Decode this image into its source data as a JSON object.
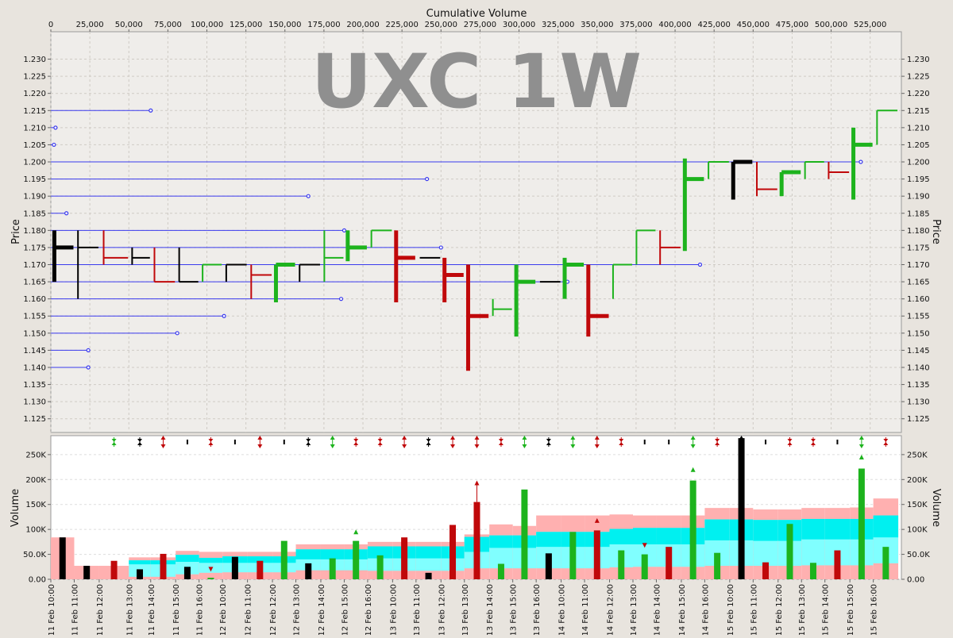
{
  "chart_data": [
    {
      "type": "price-volume-bars",
      "watermark": "UXC 1W",
      "xlabel": "Cumulative Volume",
      "ylabel": "Price",
      "x_ticks": [
        0,
        25000,
        50000,
        75000,
        100000,
        125000,
        150000,
        175000,
        200000,
        225000,
        250000,
        275000,
        300000,
        325000,
        350000,
        375000,
        400000,
        425000,
        450000,
        475000,
        500000,
        525000
      ],
      "xlim": [
        0,
        545000
      ],
      "ylim": [
        1.121,
        1.238
      ],
      "y_ticks": [
        1.125,
        1.13,
        1.135,
        1.14,
        1.145,
        1.15,
        1.155,
        1.16,
        1.165,
        1.17,
        1.175,
        1.18,
        1.185,
        1.19,
        1.195,
        1.2,
        1.205,
        1.21,
        1.215,
        1.22,
        1.225,
        1.23
      ],
      "grid": true,
      "colors": {
        "up": "#1db31d",
        "down": "#c0080a",
        "flat": "#000000",
        "level": "#3a3aee"
      },
      "bars": [
        {
          "cv_start": 0,
          "cv_end": 15000,
          "high": 1.18,
          "low": 1.165,
          "open": 1.175,
          "close": 1.175,
          "dir": "flat",
          "vol": 84000
        },
        {
          "cv_start": 15000,
          "cv_end": 31000,
          "high": 1.18,
          "low": 1.16,
          "open": 1.175,
          "close": 1.175,
          "dir": "flat",
          "vol": 27000
        },
        {
          "cv_start": 31000,
          "cv_end": 50000,
          "high": 1.18,
          "low": 1.17,
          "open": 1.18,
          "close": 1.172,
          "dir": "down",
          "vol": 37000
        },
        {
          "cv_start": 50000,
          "cv_end": 64000,
          "high": 1.175,
          "low": 1.17,
          "open": 1.172,
          "close": 1.172,
          "dir": "flat",
          "vol": 20000
        },
        {
          "cv_start": 64000,
          "cv_end": 80000,
          "high": 1.175,
          "low": 1.165,
          "open": 1.175,
          "close": 1.165,
          "dir": "down",
          "vol": 51000
        },
        {
          "cv_start": 80000,
          "cv_end": 95000,
          "high": 1.175,
          "low": 1.165,
          "open": 1.165,
          "close": 1.165,
          "dir": "flat",
          "vol": 25000
        },
        {
          "cv_start": 95000,
          "cv_end": 110000,
          "high": 1.17,
          "low": 1.165,
          "open": 1.165,
          "close": 1.17,
          "dir": "up",
          "vol": 3000
        },
        {
          "cv_start": 110000,
          "cv_end": 126000,
          "high": 1.17,
          "low": 1.165,
          "open": 1.17,
          "close": 1.17,
          "dir": "flat",
          "vol": 45000
        },
        {
          "cv_start": 126000,
          "cv_end": 142000,
          "high": 1.17,
          "low": 1.16,
          "open": 1.17,
          "close": 1.167,
          "dir": "down",
          "vol": 37000
        },
        {
          "cv_start": 142000,
          "cv_end": 157000,
          "high": 1.17,
          "low": 1.159,
          "open": 1.165,
          "close": 1.17,
          "dir": "up",
          "vol": 77000
        },
        {
          "cv_start": 157000,
          "cv_end": 173000,
          "high": 1.17,
          "low": 1.165,
          "open": 1.17,
          "close": 1.17,
          "dir": "flat",
          "vol": 32000
        },
        {
          "cv_start": 173000,
          "cv_end": 188000,
          "high": 1.18,
          "low": 1.165,
          "open": 1.172,
          "close": 1.172,
          "dir": "up",
          "vol": 42000
        },
        {
          "cv_start": 188000,
          "cv_end": 203000,
          "high": 1.18,
          "low": 1.171,
          "open": 1.175,
          "close": 1.175,
          "dir": "up",
          "vol": 77000
        },
        {
          "cv_start": 203000,
          "cv_end": 219000,
          "high": 1.18,
          "low": 1.175,
          "open": 1.175,
          "close": 1.18,
          "dir": "up",
          "vol": 48000
        },
        {
          "cv_start": 219000,
          "cv_end": 234000,
          "high": 1.18,
          "low": 1.159,
          "open": 1.18,
          "close": 1.172,
          "dir": "down",
          "vol": 84000
        },
        {
          "cv_start": 234000,
          "cv_end": 250000,
          "high": 1.172,
          "low": 1.172,
          "open": 1.172,
          "close": 1.172,
          "dir": "flat",
          "vol": 13000
        },
        {
          "cv_start": 250000,
          "cv_end": 265000,
          "high": 1.172,
          "low": 1.159,
          "open": 1.172,
          "close": 1.167,
          "dir": "down",
          "vol": 109000
        },
        {
          "cv_start": 265000,
          "cv_end": 281000,
          "high": 1.17,
          "low": 1.139,
          "open": 1.17,
          "close": 1.155,
          "dir": "down",
          "vol": 155000
        },
        {
          "cv_start": 281000,
          "cv_end": 296000,
          "high": 1.16,
          "low": 1.155,
          "open": 1.155,
          "close": 1.157,
          "dir": "up",
          "vol": 31000
        },
        {
          "cv_start": 296000,
          "cv_end": 311000,
          "high": 1.17,
          "low": 1.149,
          "open": 1.165,
          "close": 1.165,
          "dir": "up",
          "vol": 180000
        },
        {
          "cv_start": 311000,
          "cv_end": 327000,
          "high": 1.165,
          "low": 1.165,
          "open": 1.165,
          "close": 1.165,
          "dir": "flat",
          "vol": 52000
        },
        {
          "cv_start": 327000,
          "cv_end": 342000,
          "high": 1.172,
          "low": 1.16,
          "open": 1.17,
          "close": 1.17,
          "dir": "up",
          "vol": 95000
        },
        {
          "cv_start": 342000,
          "cv_end": 358000,
          "high": 1.17,
          "low": 1.149,
          "open": 1.17,
          "close": 1.155,
          "dir": "down",
          "vol": 98000
        },
        {
          "cv_start": 358000,
          "cv_end": 373000,
          "high": 1.17,
          "low": 1.16,
          "open": 1.17,
          "close": 1.17,
          "dir": "up",
          "vol": 58000
        },
        {
          "cv_start": 373000,
          "cv_end": 388000,
          "high": 1.18,
          "low": 1.17,
          "open": 1.17,
          "close": 1.18,
          "dir": "up",
          "vol": 50000
        },
        {
          "cv_start": 388000,
          "cv_end": 404000,
          "high": 1.18,
          "low": 1.17,
          "open": 1.18,
          "close": 1.175,
          "dir": "down",
          "vol": 65000
        },
        {
          "cv_start": 404000,
          "cv_end": 419000,
          "high": 1.201,
          "low": 1.174,
          "open": 1.175,
          "close": 1.195,
          "dir": "up",
          "vol": 198000
        },
        {
          "cv_start": 419000,
          "cv_end": 435000,
          "high": 1.2,
          "low": 1.195,
          "open": 1.2,
          "close": 1.2,
          "dir": "up",
          "vol": 53000
        },
        {
          "cv_start": 435000,
          "cv_end": 450000,
          "high": 1.2,
          "low": 1.189,
          "open": 1.2,
          "close": 1.2,
          "dir": "flat",
          "vol": 283000
        },
        {
          "cv_start": 450000,
          "cv_end": 466000,
          "high": 1.2,
          "low": 1.19,
          "open": 1.2,
          "close": 1.192,
          "dir": "down",
          "vol": 34000
        },
        {
          "cv_start": 466000,
          "cv_end": 481000,
          "high": 1.197,
          "low": 1.19,
          "open": 1.197,
          "close": 1.197,
          "dir": "up",
          "vol": 111000
        },
        {
          "cv_start": 481000,
          "cv_end": 496000,
          "high": 1.2,
          "low": 1.195,
          "open": 1.2,
          "close": 1.2,
          "dir": "up",
          "vol": 33000
        },
        {
          "cv_start": 496000,
          "cv_end": 512000,
          "high": 1.2,
          "low": 1.195,
          "open": 1.2,
          "close": 1.197,
          "dir": "down",
          "vol": 58000
        },
        {
          "cv_start": 512000,
          "cv_end": 527000,
          "high": 1.21,
          "low": 1.189,
          "open": 1.2,
          "close": 1.205,
          "dir": "up",
          "vol": 222000
        },
        {
          "cv_start": 527000,
          "cv_end": 543000,
          "high": 1.215,
          "low": 1.205,
          "open": 1.215,
          "close": 1.215,
          "dir": "up",
          "vol": 65000
        }
      ],
      "levels": [
        {
          "price": 1.215,
          "x_end": 64000
        },
        {
          "price": 1.21,
          "x_end": 3000
        },
        {
          "price": 1.205,
          "x_end": 2000
        },
        {
          "price": 1.2,
          "x_end": 519000
        },
        {
          "price": 1.195,
          "x_end": 241000
        },
        {
          "price": 1.19,
          "x_end": 165000
        },
        {
          "price": 1.185,
          "x_end": 10000
        },
        {
          "price": 1.18,
          "x_end": 188000
        },
        {
          "price": 1.175,
          "x_end": 250000
        },
        {
          "price": 1.17,
          "x_end": 416000
        },
        {
          "price": 1.165,
          "x_end": 331000
        },
        {
          "price": 1.16,
          "x_end": 186000
        },
        {
          "price": 1.155,
          "x_end": 111000
        },
        {
          "price": 1.15,
          "x_end": 81000
        },
        {
          "price": 1.145,
          "x_end": 24000
        },
        {
          "price": 1.14,
          "x_end": 24000
        }
      ]
    },
    {
      "type": "bar",
      "ylabel": "Volume",
      "ylim": [
        0,
        288000
      ],
      "y_ticks": [
        0,
        50000,
        100000,
        150000,
        200000,
        250000
      ],
      "y_tick_labels": [
        "0.00",
        "50.0K",
        "100K",
        "150K",
        "200K",
        "250K"
      ],
      "categories": [
        "11 Feb 10:00",
        "11 Feb 11:00",
        "11 Feb 12:00",
        "11 Feb 13:00",
        "11 Feb 14:00",
        "11 Feb 15:00",
        "11 Feb 16:00",
        "12 Feb 10:00",
        "12 Feb 11:00",
        "12 Feb 12:00",
        "12 Feb 13:00",
        "12 Feb 14:00",
        "12 Feb 15:00",
        "12 Feb 16:00",
        "13 Feb 10:00",
        "13 Feb 11:00",
        "13 Feb 12:00",
        "13 Feb 13:00",
        "13 Feb 14:00",
        "13 Feb 15:00",
        "13 Feb 16:00",
        "14 Feb 10:00",
        "14 Feb 11:00",
        "14 Feb 12:00",
        "14 Feb 13:00",
        "14 Feb 14:00",
        "14 Feb 15:00",
        "14 Feb 16:00",
        "15 Feb 10:00",
        "15 Feb 11:00",
        "15 Feb 12:00",
        "15 Feb 13:00",
        "15 Feb 14:00",
        "15 Feb 15:00",
        "15 Feb 16:00"
      ],
      "band_outer_top": [
        84000,
        27000,
        27000,
        44000,
        44000,
        57000,
        55000,
        55000,
        55000,
        55000,
        70000,
        70000,
        70000,
        75000,
        75000,
        75000,
        75000,
        90000,
        110000,
        107000,
        128000,
        128000,
        128000,
        130000,
        128000,
        128000,
        128000,
        143000,
        143000,
        140000,
        140000,
        143000,
        143000,
        144000,
        162000
      ],
      "band_upper": [
        0,
        0,
        0,
        38000,
        38000,
        49000,
        43000,
        46000,
        46000,
        46000,
        60000,
        60000,
        60000,
        66000,
        66000,
        66000,
        66000,
        85000,
        88000,
        88000,
        95000,
        95000,
        95000,
        101000,
        103000,
        103000,
        103000,
        120000,
        120000,
        119000,
        119000,
        121000,
        121000,
        121000,
        128000
      ],
      "band_lower": [
        0,
        0,
        0,
        30000,
        30000,
        35000,
        33000,
        33000,
        33000,
        33000,
        40000,
        40000,
        40000,
        42000,
        42000,
        42000,
        42000,
        55000,
        63000,
        63000,
        65000,
        65000,
        65000,
        70000,
        70000,
        70000,
        70000,
        78000,
        78000,
        77000,
        77000,
        80000,
        80000,
        80000,
        84000
      ],
      "band_inner_bottom": [
        0,
        0,
        0,
        5000,
        5000,
        10000,
        13000,
        14000,
        14000,
        14000,
        18000,
        18000,
        18000,
        17000,
        17000,
        17000,
        17000,
        22000,
        22000,
        22000,
        22000,
        22000,
        22000,
        24000,
        25000,
        25000,
        25000,
        27000,
        27000,
        27000,
        27000,
        28000,
        28000,
        28000,
        32000
      ],
      "markers": [
        {
          "i": 2,
          "type": "double",
          "color": "up"
        },
        {
          "i": 3,
          "type": "double",
          "color": "flat"
        },
        {
          "i": 4,
          "type": "double-out",
          "color": "down"
        },
        {
          "i": 5,
          "type": "dash",
          "color": "flat"
        },
        {
          "i": 6,
          "type": "double",
          "color": "down"
        },
        {
          "i": 7,
          "type": "dash",
          "color": "flat"
        },
        {
          "i": 8,
          "type": "double-out",
          "color": "down"
        },
        {
          "i": 9,
          "type": "dash",
          "color": "flat"
        },
        {
          "i": 10,
          "type": "double",
          "color": "flat"
        },
        {
          "i": 11,
          "type": "double-out",
          "color": "up"
        },
        {
          "i": 12,
          "type": "double",
          "color": "down"
        },
        {
          "i": 13,
          "type": "double",
          "color": "down"
        },
        {
          "i": 14,
          "type": "double-out",
          "color": "down"
        },
        {
          "i": 15,
          "type": "double",
          "color": "flat"
        },
        {
          "i": 16,
          "type": "double-out",
          "color": "down"
        },
        {
          "i": 17,
          "type": "double-out",
          "color": "down"
        },
        {
          "i": 18,
          "type": "double",
          "color": "down"
        },
        {
          "i": 19,
          "type": "double-out",
          "color": "up"
        },
        {
          "i": 20,
          "type": "double",
          "color": "flat"
        },
        {
          "i": 21,
          "type": "double-out",
          "color": "up"
        },
        {
          "i": 22,
          "type": "double-out",
          "color": "down"
        },
        {
          "i": 23,
          "type": "double",
          "color": "down"
        },
        {
          "i": 24,
          "type": "dash",
          "color": "flat"
        },
        {
          "i": 25,
          "type": "dash",
          "color": "flat"
        },
        {
          "i": 26,
          "type": "double-out",
          "color": "up"
        },
        {
          "i": 27,
          "type": "double",
          "color": "down"
        },
        {
          "i": 28,
          "type": "double-out",
          "color": "flat"
        },
        {
          "i": 29,
          "type": "dash",
          "color": "flat"
        },
        {
          "i": 30,
          "type": "double",
          "color": "down"
        },
        {
          "i": 31,
          "type": "double",
          "color": "down"
        },
        {
          "i": 32,
          "type": "dash",
          "color": "flat"
        },
        {
          "i": 33,
          "type": "double-out",
          "color": "up"
        },
        {
          "i": 34,
          "type": "double",
          "color": "down"
        }
      ],
      "bar_markers": [
        {
          "i": 6,
          "y": 20000,
          "dir": "down",
          "color": "down"
        },
        {
          "i": 12,
          "y": 95000,
          "dir": "up",
          "color": "up"
        },
        {
          "i": 17,
          "y": 195000,
          "dir": "up-long",
          "color": "down"
        },
        {
          "i": 22,
          "y": 118000,
          "dir": "up",
          "color": "down"
        },
        {
          "i": 24,
          "y": 68000,
          "dir": "down",
          "color": "down"
        },
        {
          "i": 26,
          "y": 220000,
          "dir": "up",
          "color": "up"
        },
        {
          "i": 33,
          "y": 245000,
          "dir": "up",
          "color": "up"
        }
      ]
    }
  ]
}
